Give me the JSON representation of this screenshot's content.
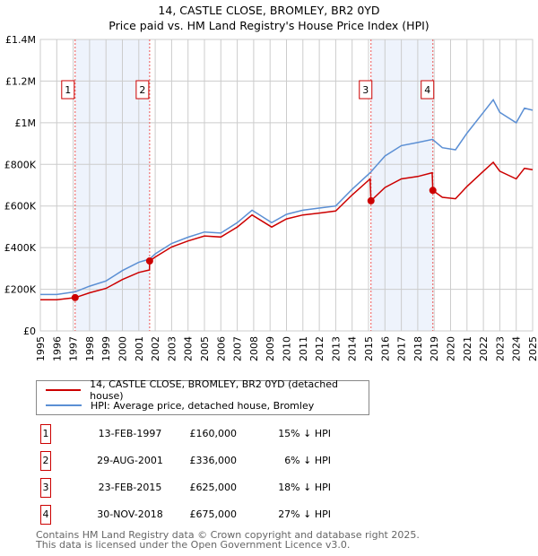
{
  "chart_data": {
    "type": "line",
    "title": "14, CASTLE CLOSE, BROMLEY, BR2 0YD",
    "subtitle": "Price paid vs. HM Land Registry's House Price Index (HPI)",
    "xlim": [
      1995,
      2025
    ],
    "ylim": [
      0,
      1400000
    ],
    "x_ticks": [
      "1995",
      "1996",
      "1997",
      "1998",
      "1999",
      "2000",
      "2001",
      "2002",
      "2003",
      "2004",
      "2005",
      "2006",
      "2007",
      "2008",
      "2009",
      "2010",
      "2011",
      "2012",
      "2013",
      "2014",
      "2015",
      "2016",
      "2017",
      "2018",
      "2019",
      "2020",
      "2021",
      "2022",
      "2023",
      "2024",
      "2025"
    ],
    "y_ticks": [
      {
        "v": 0,
        "label": "£0"
      },
      {
        "v": 200000,
        "label": "£200K"
      },
      {
        "v": 400000,
        "label": "£400K"
      },
      {
        "v": 600000,
        "label": "£600K"
      },
      {
        "v": 800000,
        "label": "£800K"
      },
      {
        "v": 1000000,
        "label": "£1M"
      },
      {
        "v": 1200000,
        "label": "£1.2M"
      },
      {
        "v": 1400000,
        "label": "£1.4M"
      }
    ],
    "grid": true,
    "series": [
      {
        "name": "14, CASTLE CLOSE, BROMLEY, BR2 0YD (detached house)",
        "color": "#cc0000",
        "x": [
          1995,
          1996,
          1997.12,
          1998,
          1999,
          2000,
          2001,
          2001.65,
          2001.66,
          2002,
          2003,
          2004,
          2005,
          2006,
          2007,
          2007.9,
          2009.1,
          2010,
          2011,
          2012,
          2013,
          2014,
          2015.1,
          2015.15,
          2016,
          2017,
          2018,
          2018.88,
          2018.92,
          2019.5,
          2020.3,
          2021,
          2022,
          2022.6,
          2023,
          2024,
          2024.5,
          2025
        ],
        "y": [
          150000,
          150000,
          160000,
          183000,
          204000,
          247000,
          281000,
          293000,
          336000,
          355000,
          403000,
          432000,
          456000,
          451000,
          499000,
          557000,
          499000,
          538000,
          557000,
          566000,
          576000,
          653000,
          730000,
          625000,
          689000,
          730000,
          742000,
          760000,
          675000,
          642000,
          635000,
          694000,
          767000,
          810000,
          767000,
          730000,
          781000,
          774000
        ]
      },
      {
        "name": "HPI: Average price, detached house, Bromley",
        "color": "#5b8fd4",
        "x": [
          1995,
          1996,
          1997.12,
          1998,
          1999,
          2000,
          2001,
          2001.66,
          2002,
          2003,
          2004,
          2005,
          2006,
          2007,
          2007.9,
          2009.1,
          2010,
          2011,
          2012,
          2013,
          2014,
          2015.1,
          2016,
          2017,
          2018,
          2018.9,
          2019.5,
          2020.3,
          2021,
          2022,
          2022.6,
          2023,
          2024,
          2024.5,
          2025
        ],
        "y": [
          175000,
          175000,
          188000,
          215000,
          240000,
          290000,
          330000,
          345000,
          370000,
          420000,
          450000,
          475000,
          470000,
          520000,
          580000,
          520000,
          560000,
          580000,
          590000,
          600000,
          680000,
          760000,
          840000,
          890000,
          905000,
          920000,
          880000,
          870000,
          950000,
          1050000,
          1110000,
          1050000,
          1000000,
          1070000,
          1060000
        ]
      }
    ],
    "sales": [
      {
        "n": "1",
        "x": 1997.12,
        "date": "13-FEB-1997",
        "price_value": 160000,
        "price": "£160,000",
        "pct": "15% ↓ HPI"
      },
      {
        "n": "2",
        "x": 2001.66,
        "date": "29-AUG-2001",
        "price_value": 336000,
        "price": "£336,000",
        "pct": "6% ↓ HPI"
      },
      {
        "n": "3",
        "x": 2015.15,
        "date": "23-FEB-2015",
        "price_value": 625000,
        "price": "£625,000",
        "pct": "18% ↓ HPI"
      },
      {
        "n": "4",
        "x": 2018.92,
        "date": "30-NOV-2018",
        "price_value": 675000,
        "price": "£675,000",
        "pct": "27% ↓ HPI"
      }
    ],
    "legend_placement": "below"
  },
  "footer": {
    "line1": "Contains HM Land Registry data © Crown copyright and database right 2025.",
    "line2": "This data is licensed under the Open Government Licence v3.0."
  }
}
